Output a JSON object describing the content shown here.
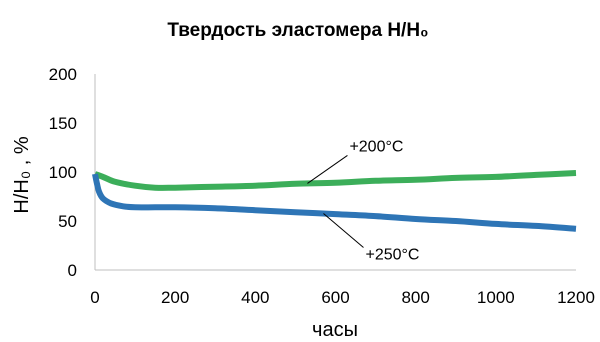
{
  "chart_data": {
    "type": "line",
    "title": "Твердость эластомера H/H₀",
    "xlabel": "часы",
    "ylabel": "H/H₀ , %",
    "xlim": [
      0,
      1200
    ],
    "ylim": [
      0,
      200
    ],
    "xticks": [
      0,
      200,
      400,
      600,
      800,
      1000,
      1200
    ],
    "yticks": [
      0,
      50,
      100,
      150,
      200
    ],
    "grid": false,
    "legend": "none",
    "series": [
      {
        "name": "+200°C",
        "color": "#3cae5a",
        "x": [
          0,
          20,
          50,
          100,
          150,
          200,
          300,
          400,
          500,
          600,
          700,
          800,
          900,
          1000,
          1100,
          1200
        ],
        "y": [
          98,
          95,
          90,
          86,
          84,
          84,
          85,
          86,
          88,
          89,
          91,
          92,
          94,
          95,
          97,
          99
        ]
      },
      {
        "name": "+250°C",
        "color": "#2e75b6",
        "x": [
          0,
          5,
          10,
          20,
          40,
          70,
          100,
          150,
          200,
          300,
          400,
          500,
          600,
          700,
          800,
          900,
          1000,
          1100,
          1200
        ],
        "y": [
          98,
          88,
          80,
          73,
          68,
          65,
          64,
          64,
          64,
          63,
          61,
          59,
          57,
          55,
          52,
          50,
          47,
          45,
          42
        ]
      }
    ],
    "annotations": [
      {
        "text": "+200°C",
        "series": 0,
        "point_x": 530
      },
      {
        "text": "+250°C",
        "series": 1,
        "point_x": 570
      }
    ]
  }
}
